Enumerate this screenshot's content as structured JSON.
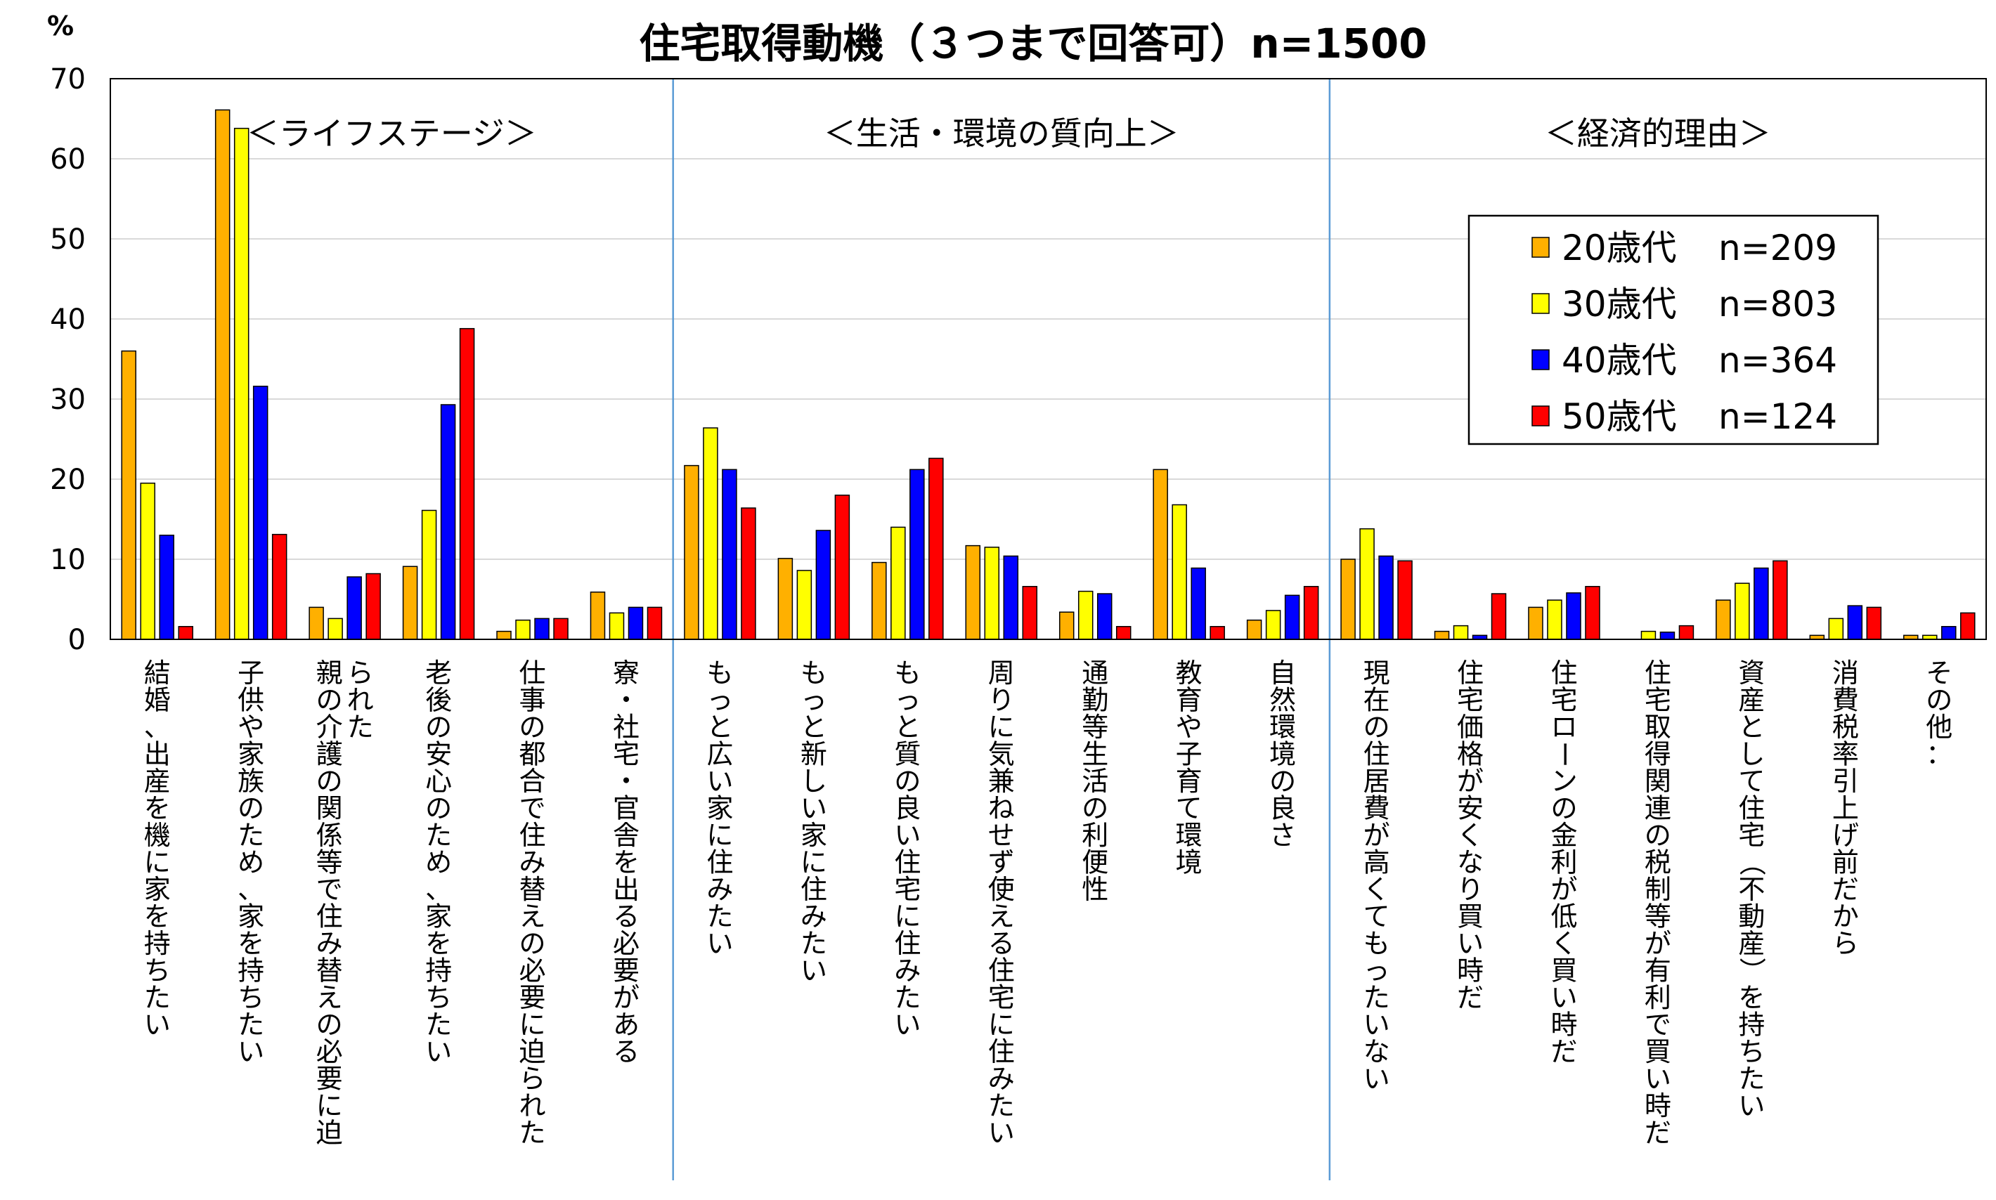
{
  "chart_data": {
    "type": "bar",
    "title": "住宅取得動機（３つまで回答可）n=1500",
    "unit_label": "%",
    "ylim": [
      0,
      70
    ],
    "yticks": [
      0,
      10,
      20,
      30,
      40,
      50,
      60,
      70
    ],
    "grid": true,
    "legend_position": "top-right",
    "groups": [
      {
        "label": "＜ライフステージ＞"
      },
      {
        "label": "＜生活・環境の質向上＞"
      },
      {
        "label": "＜経済的理由＞"
      }
    ],
    "categories": [
      [
        "結婚、出産を機に家を持ちたい"
      ],
      [
        "子供や家族のため、家を持ちたい"
      ],
      [
        "親の介護の関係等で住み替えの必要に迫",
        "られた"
      ],
      [
        "老後の安心のため、家を持ちたい"
      ],
      [
        "仕事の都合で住み替えの必要に迫られた"
      ],
      [
        "寮・社宅・官舎を出る必要がある"
      ],
      [
        "もっと広い家に住みたい"
      ],
      [
        "もっと新しい家に住みたい"
      ],
      [
        "もっと質の良い住宅に住みたい"
      ],
      [
        "周りに気兼ねせず使える住宅に住みたい"
      ],
      [
        "通勤等生活の利便性"
      ],
      [
        "教育や子育て環境"
      ],
      [
        "自然環境の良さ"
      ],
      [
        "現在の住居費が高くてもったいない"
      ],
      [
        "住宅価格が安くなり買い時だ"
      ],
      [
        "住宅ローンの金利が低く買い時だ"
      ],
      [
        "住宅取得関連の税制等が有利で買い時だ"
      ],
      [
        "資産として住宅（不動産）を持ちたい"
      ],
      [
        "消費税率引上げ前だから"
      ],
      [
        "その他："
      ]
    ],
    "series": [
      {
        "name": "20歳代",
        "n_label": "n=209",
        "color": "#FFB000",
        "values": [
          36.0,
          66.1,
          4.0,
          9.1,
          1.0,
          5.9,
          21.7,
          10.1,
          9.6,
          11.7,
          3.4,
          21.2,
          2.4,
          10.0,
          1.0,
          4.0,
          0.0,
          4.9,
          0.5,
          0.5
        ]
      },
      {
        "name": "30歳代",
        "n_label": "n=803",
        "color": "#FFFF00",
        "values": [
          19.5,
          63.8,
          2.6,
          16.1,
          2.4,
          3.3,
          26.4,
          8.6,
          14.0,
          11.5,
          6.0,
          16.8,
          3.6,
          13.8,
          1.7,
          4.9,
          1.0,
          7.0,
          2.6,
          0.5
        ]
      },
      {
        "name": "40歳代",
        "n_label": "n=364",
        "color": "#0000FF",
        "values": [
          13.0,
          31.6,
          7.8,
          29.3,
          2.6,
          4.0,
          21.2,
          13.6,
          21.2,
          10.4,
          5.7,
          8.9,
          5.5,
          10.4,
          0.5,
          5.8,
          0.9,
          8.9,
          4.2,
          1.6
        ]
      },
      {
        "name": "50歳代",
        "n_label": "n=124",
        "color": "#FF0000",
        "values": [
          1.6,
          13.1,
          8.2,
          38.8,
          2.6,
          4.0,
          16.4,
          18.0,
          22.6,
          6.6,
          1.6,
          1.6,
          6.6,
          9.8,
          5.7,
          6.6,
          1.7,
          9.8,
          4.0,
          3.3
        ]
      }
    ]
  }
}
